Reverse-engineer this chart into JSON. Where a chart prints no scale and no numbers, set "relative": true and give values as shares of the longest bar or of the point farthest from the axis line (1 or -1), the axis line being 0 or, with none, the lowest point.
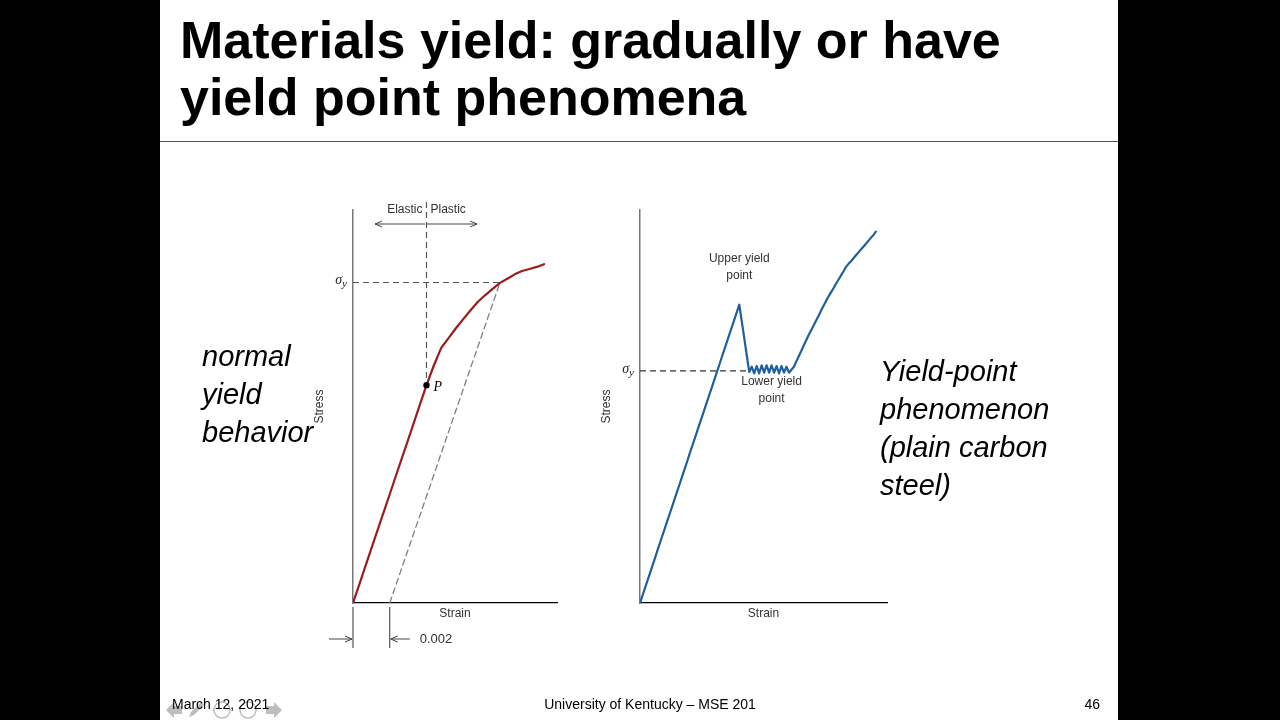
{
  "chart_data": [
    {
      "type": "other",
      "title": "Materials yield: gradually or have yield point phenomena",
      "annotations": [
        "March 12, 2021",
        "University of Kentucky – MSE 201",
        "46"
      ]
    },
    {
      "type": "line",
      "relative": true,
      "xlabel": "Strain",
      "ylabel": "Stress",
      "categories": [
        null,
        null,
        null,
        null,
        null,
        null,
        null,
        null,
        null,
        null,
        null,
        null,
        null,
        null,
        null,
        null,
        null,
        null,
        null,
        null,
        null,
        null,
        null,
        null,
        null,
        null,
        null
      ],
      "series": [
        {
          "color": "#9b1c1c",
          "marker": "none",
          "line_style": "solid",
          "values": [
            0,
            0.064,
            0.129,
            0.193,
            0.257,
            0.321,
            0.386,
            0.45,
            0.514,
            0.579,
            0.643,
            0.701,
            0.753,
            0.782,
            0.811,
            0.838,
            0.864,
            0.889,
            0.909,
            0.927,
            0.945,
            0.957,
            0.97,
            0.98,
            0.986,
            0.992,
            1
          ]
        },
        {
          "color": "#808080",
          "marker": "none",
          "line_style": "dashed",
          "values": [
            null,
            null,
            null,
            null,
            null,
            0,
            0.063,
            0.126,
            0.189,
            0.252,
            0.315,
            0.378,
            0.442,
            0.505,
            0.568,
            0.631,
            0.694,
            0.757,
            0.82,
            0.883,
            0.946,
            null,
            null,
            null,
            null,
            null,
            null
          ]
        }
      ],
      "ref_lines": [
        {
          "axis": "y",
          "value": 0.946,
          "label": "σ$_{y}$",
          "line_style": "dashed",
          "color": "#555555"
        }
      ],
      "annotations": [
        "normal yield behavior",
        "0.002",
        "Elastic",
        "Plastic",
        "P"
      ]
    },
    {
      "type": "line",
      "relative": true,
      "xlabel": "Strain",
      "ylabel": "Stress",
      "categories": [
        null,
        null,
        null,
        null,
        null,
        null,
        null,
        null,
        null,
        null,
        null,
        null,
        null,
        null,
        null,
        null,
        null,
        null,
        null,
        null,
        null,
        null,
        null,
        null,
        null,
        null,
        null,
        null,
        null,
        null,
        null,
        null,
        null,
        null,
        null,
        null,
        null,
        null,
        null,
        null,
        null,
        null,
        null,
        null,
        null,
        null,
        null,
        null,
        null,
        null,
        null,
        null,
        null,
        null,
        null,
        null,
        null,
        null,
        null,
        null,
        null,
        null,
        null,
        null,
        null,
        null,
        null,
        null,
        null,
        null,
        null,
        null,
        null,
        null,
        null,
        null,
        null,
        null,
        null,
        null,
        null,
        null,
        null,
        null,
        null,
        null,
        null,
        null,
        null,
        null,
        null,
        null,
        null,
        null,
        null,
        null
      ],
      "series": [
        {
          "color": "#1f5f9e",
          "marker": "none",
          "line_style": "solid",
          "values": [
            0,
            0.02,
            0.04,
            0.06,
            0.08,
            0.1,
            0.12,
            0.141,
            0.161,
            0.181,
            0.201,
            0.221,
            0.241,
            0.261,
            0.281,
            0.301,
            0.321,
            0.341,
            0.361,
            0.381,
            0.402,
            0.422,
            0.442,
            0.462,
            0.482,
            0.502,
            0.522,
            0.542,
            0.562,
            0.582,
            0.602,
            0.622,
            0.642,
            0.663,
            0.683,
            0.703,
            0.723,
            0.743,
            0.763,
            0.783,
            0.803,
            0.758,
            0.713,
            0.667,
            0.622,
            0.636,
            0.618,
            0.638,
            0.618,
            0.64,
            0.62,
            0.64,
            0.62,
            0.64,
            0.62,
            0.638,
            0.618,
            0.638,
            0.62,
            0.636,
            0.62,
            0.628,
            0.636,
            0.651,
            0.665,
            0.679,
            0.694,
            0.708,
            0.722,
            0.735,
            0.748,
            0.761,
            0.774,
            0.788,
            0.801,
            0.814,
            0.826,
            0.837,
            0.848,
            0.86,
            0.871,
            0.882,
            0.893,
            0.905,
            0.913,
            0.92,
            0.928,
            0.936,
            0.944,
            0.952,
            0.959,
            0.967,
            0.975,
            0.983,
            0.99,
            1
          ]
        }
      ],
      "ref_lines": [
        {
          "axis": "y",
          "value": 0.625,
          "label": "σ$_{y}$",
          "line_style": "dashed",
          "color": "#333333"
        }
      ],
      "annotations": [
        "Yield-point phenomenon (plain carbon steel)",
        "Upper yield point",
        "Lower yield point"
      ]
    }
  ]
}
